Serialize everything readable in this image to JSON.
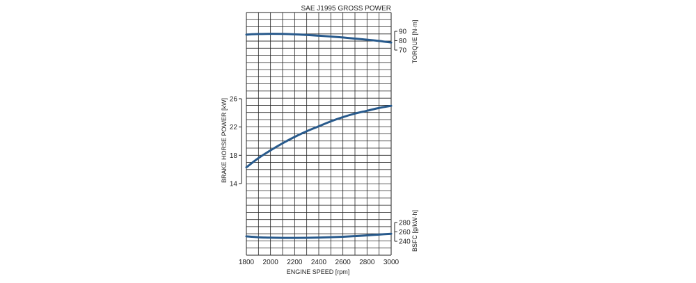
{
  "chart_data": {
    "type": "line",
    "title": "SAE J1995 GROSS POWER",
    "xlabel": "ENGINE SPEED [rpm]",
    "x_ticks": [
      "1800",
      "2000",
      "2200",
      "2400",
      "2600",
      "2800",
      "3000"
    ],
    "xlim": [
      1800,
      3000
    ],
    "grid": true,
    "accent_color": "#285a8c",
    "axes": {
      "power": {
        "label": "BRAKE HORSE POWER [kW]",
        "ticks": [
          "14",
          "18",
          "22",
          "26"
        ],
        "ylim": [
          14,
          26
        ]
      },
      "torque": {
        "label": "TORQUE [N·m]",
        "ticks": [
          "70",
          "80",
          "90"
        ],
        "ylim": [
          70,
          90
        ]
      },
      "bsfc": {
        "label": "BSFC [g/kW·h]",
        "ticks": [
          "240",
          "260",
          "280"
        ],
        "ylim": [
          240,
          280
        ]
      }
    },
    "series": [
      {
        "axis": "torque",
        "x": [
          1800,
          1900,
          2000,
          2100,
          2200,
          2300,
          2400,
          2500,
          2600,
          2700,
          2800,
          2900,
          3000
        ],
        "y": [
          86.5,
          87.1,
          87.3,
          87.2,
          86.8,
          86.1,
          85.3,
          84.4,
          83.4,
          82.2,
          81.0,
          79.7,
          78.0
        ]
      },
      {
        "axis": "power",
        "x": [
          1800,
          1900,
          2000,
          2100,
          2200,
          2300,
          2400,
          2500,
          2600,
          2700,
          2800,
          2900,
          3000
        ],
        "y": [
          16.3,
          17.6,
          18.7,
          19.7,
          20.6,
          21.4,
          22.1,
          22.8,
          23.4,
          23.9,
          24.3,
          24.7,
          25.0
        ]
      },
      {
        "axis": "bsfc",
        "x": [
          1800,
          1900,
          2000,
          2100,
          2200,
          2300,
          2400,
          2500,
          2600,
          2700,
          2800,
          2900,
          3000
        ],
        "y": [
          250.5,
          248.6,
          247.7,
          247.3,
          247.2,
          247.4,
          247.9,
          248.7,
          249.7,
          251.0,
          252.6,
          254.3,
          256.0
        ]
      }
    ]
  }
}
